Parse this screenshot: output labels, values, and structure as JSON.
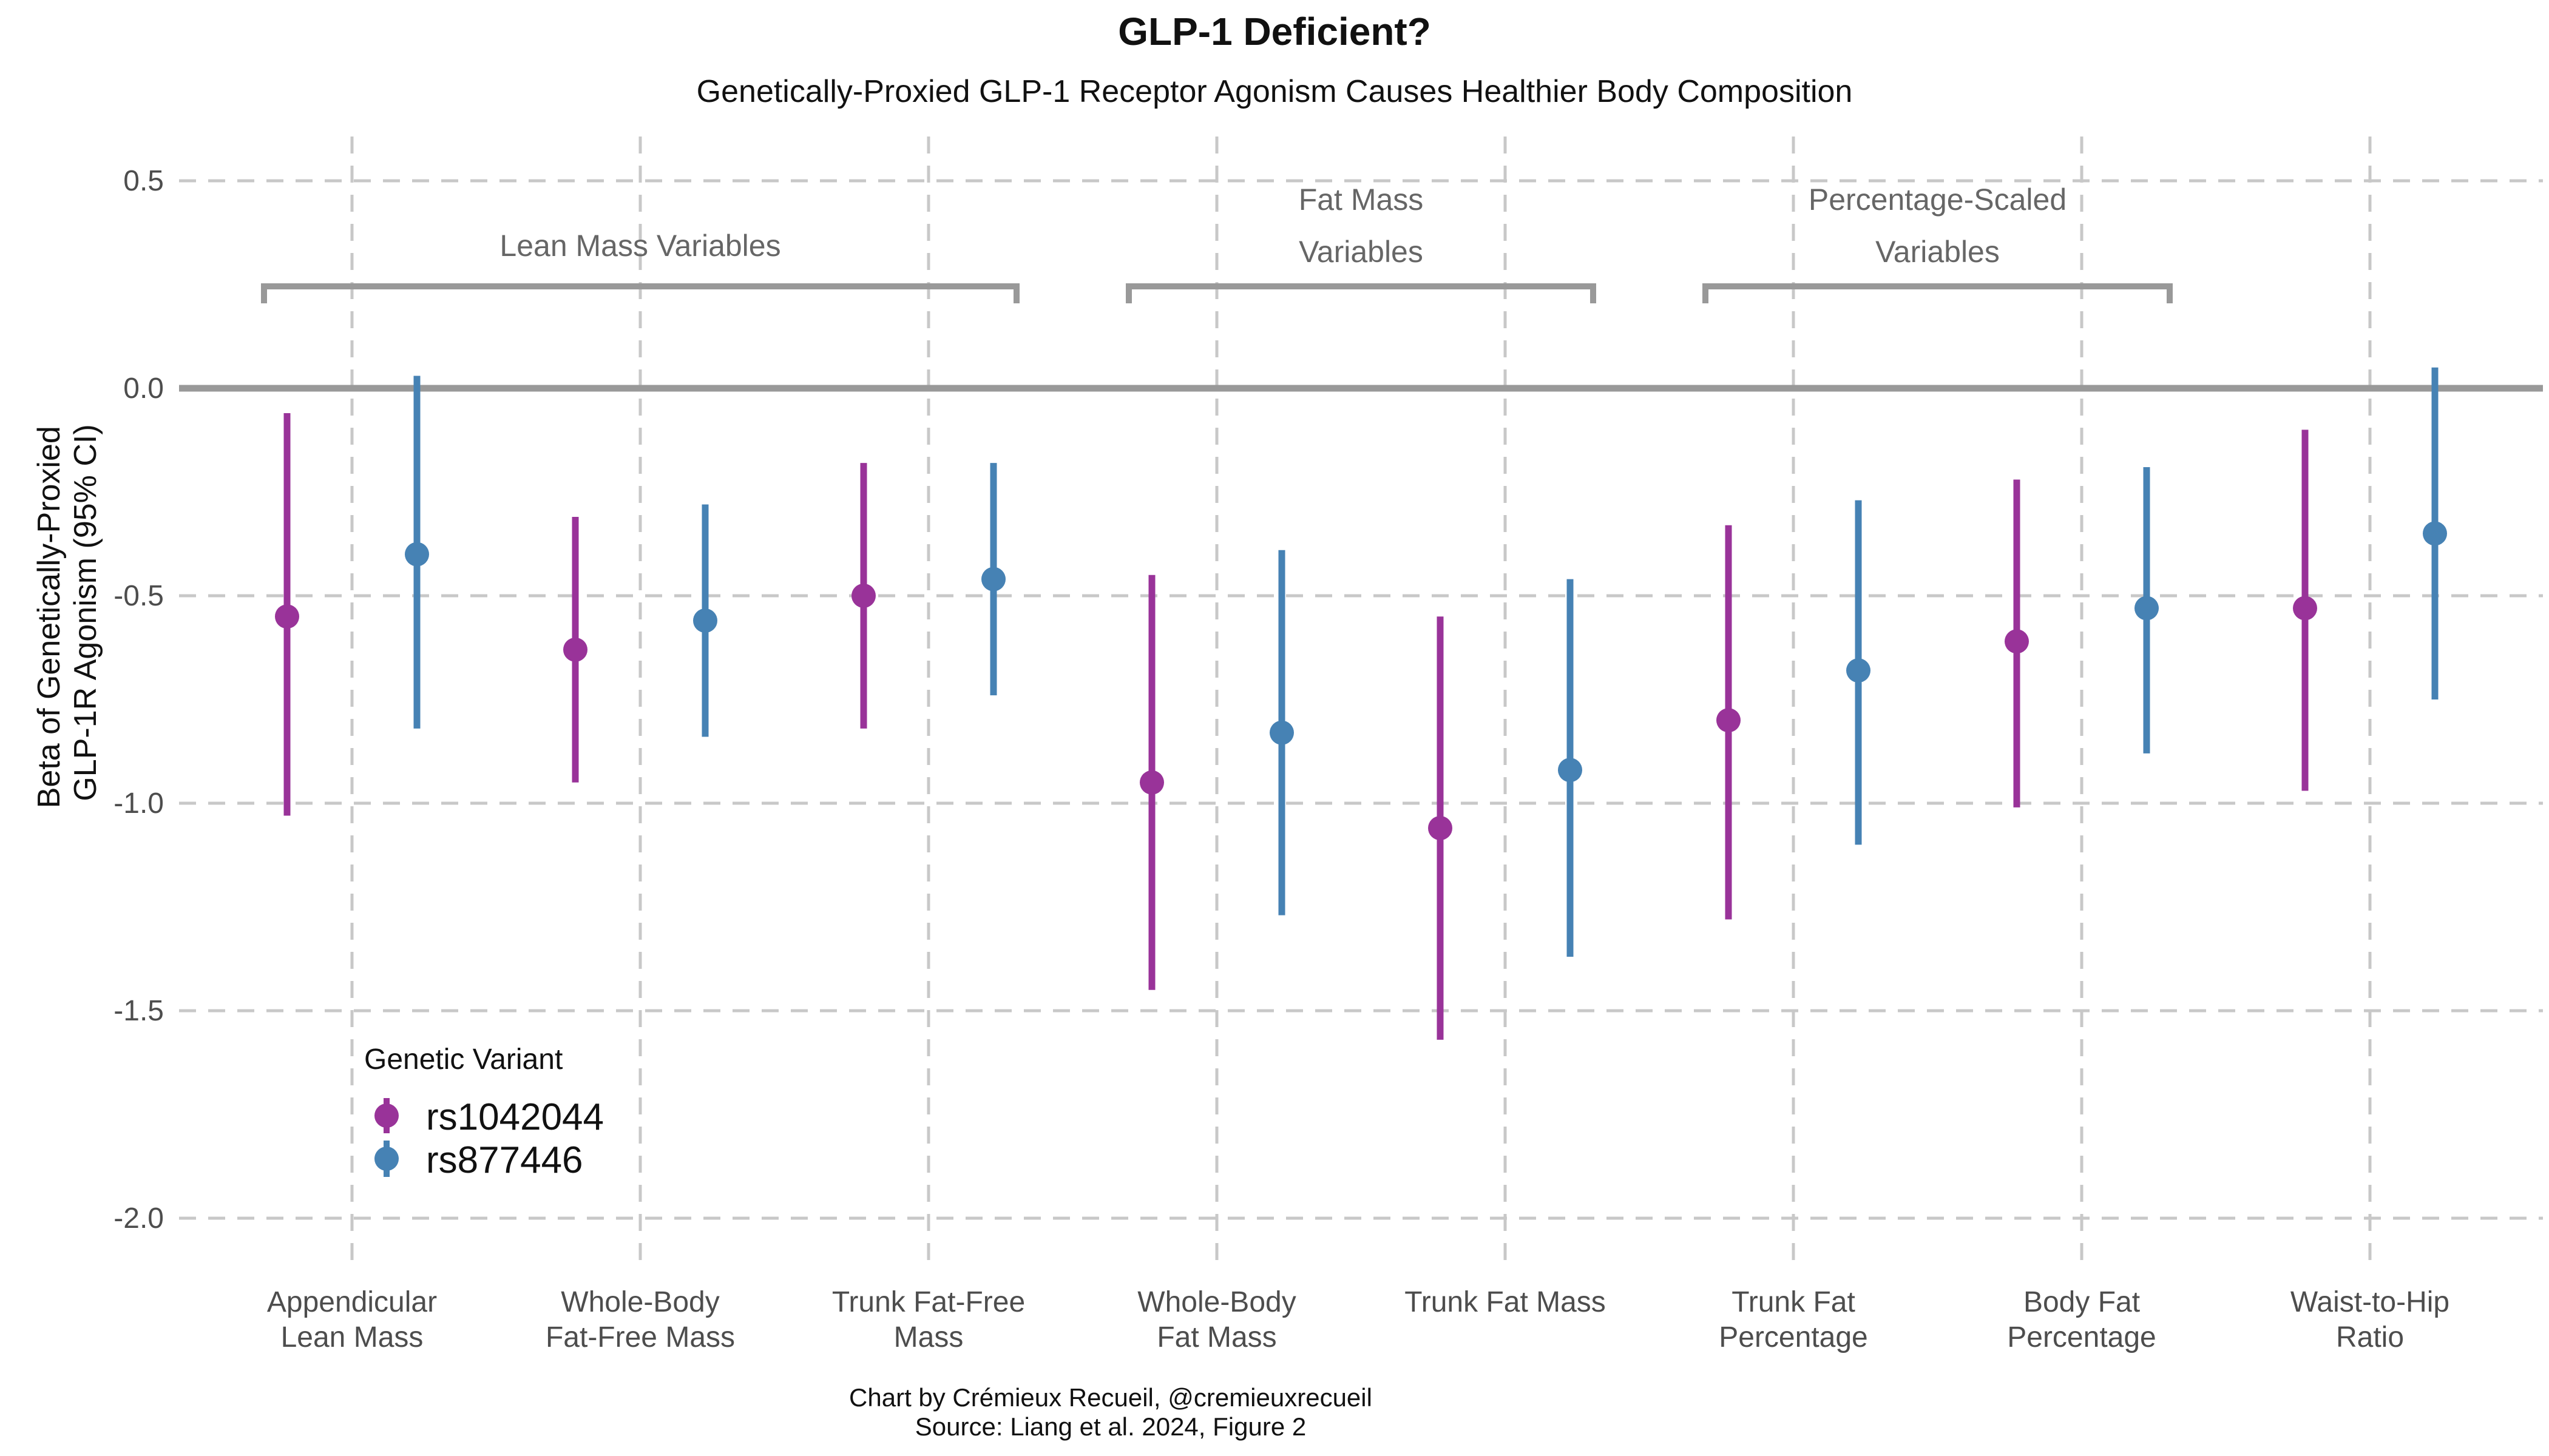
{
  "title": "GLP-1 Deficient?",
  "subtitle": "Genetically-Proxied GLP-1 Receptor Agonism Causes Healthier Body Composition",
  "caption": {
    "line1": "Chart by Crémieux Recueil, @cremieuxrecueil",
    "line2": "Source: Liang et al. 2024, Figure 2"
  },
  "chart_data": {
    "type": "scatter",
    "subtype": "pointrange",
    "ylabel": [
      "Beta of Genetically-Proxied",
      "GLP-1R Agonism (95% CI)"
    ],
    "xlabel": "",
    "ylim": [
      -2.0,
      0.5
    ],
    "yticks": [
      0.5,
      0.0,
      -0.5,
      -1.0,
      -1.5,
      -2.0
    ],
    "ytick_labels": [
      "0.5",
      "0.0",
      "-0.5",
      "-1.0",
      "-1.5",
      "-2.0"
    ],
    "reference_line": 0.0,
    "grid": true,
    "categories": [
      [
        "Appendicular",
        "Lean Mass"
      ],
      [
        "Whole-Body",
        "Fat-Free Mass"
      ],
      [
        "Trunk Fat-Free",
        "Mass"
      ],
      [
        "Whole-Body",
        "Fat Mass"
      ],
      [
        "Trunk Fat Mass"
      ],
      [
        "Trunk Fat",
        "Percentage"
      ],
      [
        "Body Fat",
        "Percentage"
      ],
      [
        "Waist-to-Hip",
        "Ratio"
      ]
    ],
    "series": [
      {
        "name": "rs1042044",
        "color": "#993399",
        "values": [
          -0.55,
          -0.63,
          -0.5,
          -0.95,
          -1.06,
          -0.8,
          -0.61,
          -0.53
        ],
        "lower": [
          -1.03,
          -0.95,
          -0.82,
          -1.45,
          -1.57,
          -1.28,
          -1.01,
          -0.97
        ],
        "upper": [
          -0.06,
          -0.31,
          -0.18,
          -0.45,
          -0.55,
          -0.33,
          -0.22,
          -0.1
        ]
      },
      {
        "name": "rs877446",
        "color": "#4682B4",
        "values": [
          -0.4,
          -0.56,
          -0.46,
          -0.83,
          -0.92,
          -0.68,
          -0.53,
          -0.35
        ],
        "lower": [
          -0.82,
          -0.84,
          -0.74,
          -1.27,
          -1.37,
          -1.1,
          -0.88,
          -0.75
        ],
        "upper": [
          0.03,
          -0.28,
          -0.18,
          -0.39,
          -0.46,
          -0.27,
          -0.19,
          0.05
        ]
      }
    ],
    "groups": [
      {
        "label": [
          "Lean Mass Variables"
        ],
        "from": 0,
        "to": 2
      },
      {
        "label": [
          "Fat Mass",
          "Variables"
        ],
        "from": 3,
        "to": 4
      },
      {
        "label": [
          "Percentage-Scaled",
          "Variables"
        ],
        "from": 5,
        "to": 6
      }
    ],
    "legend": {
      "title": "Genetic Variant",
      "position": "bottom-left",
      "entries": [
        "rs1042044",
        "rs877446"
      ]
    }
  }
}
